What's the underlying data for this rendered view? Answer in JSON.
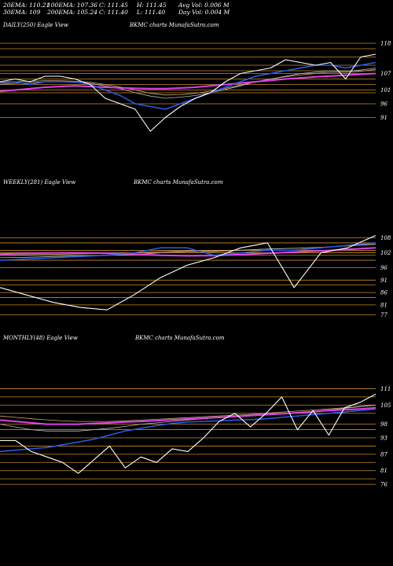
{
  "header": {
    "row1": [
      "20EMA: 110.21",
      "100EMA: 107.36",
      "C: 111.45",
      "H: 111.45",
      "Avg Vol: 0.006  M"
    ],
    "row2": [
      "30EMA: 109",
      "200EMA: 105.24",
      "C: 111.40",
      "L: 111.40",
      "Day Vol: 0.004  M"
    ]
  },
  "colors": {
    "background": "#000000",
    "price": "#ffffff",
    "ema_short": "#2a5ce8",
    "ema_long": "#e040e8",
    "ema_mid": "#b8b8b8",
    "ema_tan": "#c8a878",
    "gridline": "#c88a2e"
  },
  "chart_data": [
    {
      "type": "line",
      "title": "DAILY(250) Eagle  View",
      "subtitle": "BKMC charts MunafaSutra.com",
      "ylim": [
        88,
        120
      ],
      "yticks": [
        118,
        107,
        101,
        96,
        91
      ],
      "gridlines": [
        116,
        113,
        110,
        108,
        105,
        103,
        100
      ],
      "x": [
        0,
        10,
        20,
        30,
        40,
        50,
        60,
        70,
        80,
        90,
        100,
        110,
        120,
        130,
        140,
        150,
        160,
        170,
        180,
        190,
        200,
        210,
        220,
        230,
        240,
        250
      ],
      "series": [
        {
          "name": "",
          "color": "#ffffff",
          "width": 1.1,
          "values": [
            104,
            105,
            104,
            106,
            106,
            105,
            103,
            98,
            96,
            94,
            86,
            91,
            95,
            98,
            100,
            104,
            107,
            108,
            109,
            112,
            111,
            110,
            111,
            105,
            113,
            114
          ]
        },
        {
          "name": "",
          "color": "#2a5ce8",
          "width": 1.5,
          "values": [
            104,
            104,
            103,
            104,
            104,
            104,
            103,
            101,
            99,
            96,
            95,
            94,
            96,
            98,
            100,
            102,
            104,
            106,
            107,
            108,
            109,
            110,
            110,
            109,
            110,
            111
          ]
        },
        {
          "name": "",
          "color": "#e040e8",
          "width": 2,
          "values": [
            100.5,
            101,
            101.5,
            102,
            102.3,
            102.5,
            102.3,
            102,
            101.8,
            101.6,
            101.5,
            101.5,
            101.7,
            102,
            102.5,
            103,
            103.5,
            104,
            104.5,
            105,
            105.4,
            105.8,
            106.1,
            106.4,
            106.7,
            107
          ]
        },
        {
          "name": "",
          "color": "#b8b8b8",
          "width": 0.8,
          "values": [
            103,
            103.5,
            103.6,
            104,
            104,
            103.8,
            103.4,
            102.5,
            101.5,
            100,
            98.8,
            98,
            98.4,
            99,
            100,
            101.2,
            102.5,
            104,
            105,
            106,
            107,
            107.5,
            108,
            107.8,
            108.3,
            109
          ]
        },
        {
          "name": "",
          "color": "#c8a878",
          "width": 0.8,
          "values": [
            103.5,
            104,
            104.2,
            104.4,
            104.4,
            104.2,
            103.8,
            103,
            102.1,
            101,
            99.8,
            99.2,
            99.3,
            99.8,
            100.6,
            101.6,
            102.8,
            104,
            105,
            105.8,
            106.5,
            107,
            107.5,
            107.4,
            107.8,
            108.5
          ]
        }
      ]
    },
    {
      "type": "line",
      "title": "WEEKLY(281) Eagle  View",
      "subtitle": "BKMC charts MunafaSutra.com",
      "ylim": [
        74,
        112
      ],
      "yticks": [
        108,
        102,
        96,
        91,
        86,
        81,
        77
      ],
      "gridlines": [
        106,
        103,
        101,
        99,
        89,
        84
      ],
      "x": [
        0,
        20,
        40,
        60,
        80,
        100,
        120,
        140,
        160,
        180,
        200,
        220,
        240,
        260,
        281
      ],
      "series": [
        {
          "name": "",
          "color": "#ffffff",
          "width": 1.1,
          "values": [
            88,
            85,
            82,
            80,
            79,
            85,
            92,
            97,
            100,
            104,
            106,
            88,
            102,
            104,
            109
          ]
        },
        {
          "name": "",
          "color": "#2a5ce8",
          "width": 1.5,
          "values": [
            99,
            99.5,
            100,
            100.5,
            101,
            102,
            104,
            104,
            101,
            102,
            103,
            103,
            104,
            105,
            106
          ]
        },
        {
          "name": "",
          "color": "#e040e8",
          "width": 2,
          "values": [
            101.5,
            101.8,
            102,
            102,
            101.8,
            101.5,
            101,
            100.8,
            100.9,
            101.3,
            101.8,
            102.3,
            102.8,
            103.4,
            104
          ]
        },
        {
          "name": "",
          "color": "#b8b8b8",
          "width": 0.8,
          "values": [
            100,
            100.2,
            100.5,
            100.8,
            101,
            101.3,
            102,
            102.5,
            102.5,
            103,
            103.5,
            103.8,
            104.2,
            104.8,
            105.5
          ]
        },
        {
          "name": "",
          "color": "#c8a878",
          "width": 0.8,
          "values": [
            101,
            101.2,
            101.4,
            101.6,
            101.8,
            102,
            102.5,
            102.8,
            102.8,
            103.1,
            103.5,
            103.8,
            104.2,
            104.8,
            105.4
          ]
        }
      ]
    },
    {
      "type": "line",
      "title": "MONTHLY(48) Eagle  View",
      "subtitle": "BKMC charts MunafaSutra.com",
      "ylim": [
        72,
        114
      ],
      "yticks": [
        111,
        105,
        98,
        93,
        87,
        81,
        76
      ],
      "gridlines": [
        108,
        102,
        96,
        90,
        84,
        78
      ],
      "x": [
        0,
        2,
        4,
        6,
        8,
        10,
        12,
        14,
        16,
        18,
        20,
        22,
        24,
        26,
        28,
        30,
        32,
        34,
        36,
        38,
        40,
        42,
        44,
        46,
        48
      ],
      "series": [
        {
          "name": "",
          "color": "#ffffff",
          "width": 1.1,
          "values": [
            92,
            92,
            88,
            86,
            84,
            80,
            85,
            90,
            82,
            86,
            84,
            89,
            88,
            93,
            99,
            102,
            97,
            102,
            108,
            96,
            103,
            94,
            104,
            106,
            109
          ]
        },
        {
          "name": "",
          "color": "#2a5ce8",
          "width": 1.5,
          "values": [
            88,
            88.5,
            89,
            89.5,
            90.5,
            91.5,
            92.5,
            94,
            95.5,
            96.5,
            97.5,
            98.3,
            98.8,
            99,
            99.2,
            99.5,
            99.7,
            100,
            100.5,
            101,
            101.5,
            102,
            102.5,
            103,
            103.5
          ]
        },
        {
          "name": "",
          "color": "#e040e8",
          "width": 2,
          "values": [
            99.5,
            99,
            98.5,
            98,
            98,
            98,
            98.3,
            98.5,
            98.8,
            99,
            99.3,
            99.6,
            99.9,
            100.2,
            100.5,
            100.8,
            101.2,
            101.5,
            101.8,
            102.2,
            102.6,
            103,
            103.3,
            103.6,
            104
          ]
        },
        {
          "name": "",
          "color": "#b8b8b8",
          "width": 0.8,
          "values": [
            98,
            97,
            96,
            95.5,
            95.5,
            95.5,
            96,
            96.5,
            97.2,
            98,
            98.5,
            99,
            99.5,
            100,
            100.4,
            100.7,
            101,
            101.4,
            101.8,
            102.2,
            102.7,
            103.2,
            103.8,
            104.4,
            105
          ]
        },
        {
          "name": "",
          "color": "#c8a878",
          "width": 0.8,
          "values": [
            101,
            100.5,
            100,
            99.6,
            99.2,
            99,
            99,
            99,
            99.2,
            99.5,
            99.8,
            100.1,
            100.4,
            100.7,
            101,
            101.3,
            101.6,
            102,
            102.4,
            102.8,
            103.2,
            103.6,
            104,
            104.5,
            105
          ]
        }
      ]
    }
  ]
}
